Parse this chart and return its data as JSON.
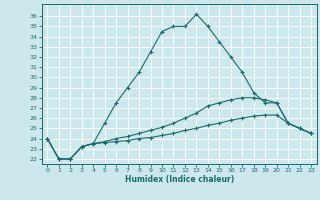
{
  "title": "",
  "xlabel": "Humidex (Indice chaleur)",
  "background_color": "#cce8ec",
  "line_color": "#1a6b6b",
  "grid_color": "#ffffff",
  "xlim": [
    -0.5,
    23.5
  ],
  "ylim": [
    21.5,
    37.2
  ],
  "xticks": [
    0,
    1,
    2,
    3,
    4,
    5,
    6,
    7,
    8,
    9,
    10,
    11,
    12,
    13,
    14,
    15,
    16,
    17,
    18,
    19,
    20,
    21,
    22,
    23
  ],
  "yticks": [
    22,
    23,
    24,
    25,
    26,
    27,
    28,
    29,
    30,
    31,
    32,
    33,
    34,
    35,
    36
  ],
  "line1_x": [
    0,
    1,
    2,
    3,
    4,
    5,
    6,
    7,
    8,
    9,
    10,
    11,
    12,
    13,
    14,
    15,
    16,
    17,
    18,
    19,
    20,
    21,
    22,
    23
  ],
  "line1_y": [
    24.0,
    22.0,
    22.0,
    23.2,
    23.5,
    25.5,
    27.5,
    29.0,
    30.5,
    32.5,
    34.5,
    35.0,
    35.0,
    36.2,
    35.0,
    33.5,
    32.0,
    30.5,
    28.5,
    27.5,
    27.5,
    25.5,
    25.0,
    24.5
  ],
  "line2_x": [
    0,
    1,
    2,
    3,
    4,
    5,
    6,
    7,
    8,
    9,
    10,
    11,
    12,
    13,
    14,
    15,
    16,
    17,
    18,
    19,
    20,
    21,
    22,
    23
  ],
  "line2_y": [
    24.0,
    22.0,
    22.0,
    23.2,
    23.5,
    23.7,
    24.0,
    24.2,
    24.5,
    24.8,
    25.1,
    25.5,
    26.0,
    26.5,
    27.2,
    27.5,
    27.8,
    28.0,
    28.0,
    27.8,
    27.5,
    25.5,
    25.0,
    24.5
  ],
  "line3_x": [
    0,
    1,
    2,
    3,
    4,
    5,
    6,
    7,
    8,
    9,
    10,
    11,
    12,
    13,
    14,
    15,
    16,
    17,
    18,
    19,
    20,
    21,
    22,
    23
  ],
  "line3_y": [
    24.0,
    22.0,
    22.0,
    23.2,
    23.5,
    23.6,
    23.7,
    23.8,
    24.0,
    24.1,
    24.3,
    24.5,
    24.8,
    25.0,
    25.3,
    25.5,
    25.8,
    26.0,
    26.2,
    26.3,
    26.3,
    25.5,
    25.0,
    24.5
  ]
}
